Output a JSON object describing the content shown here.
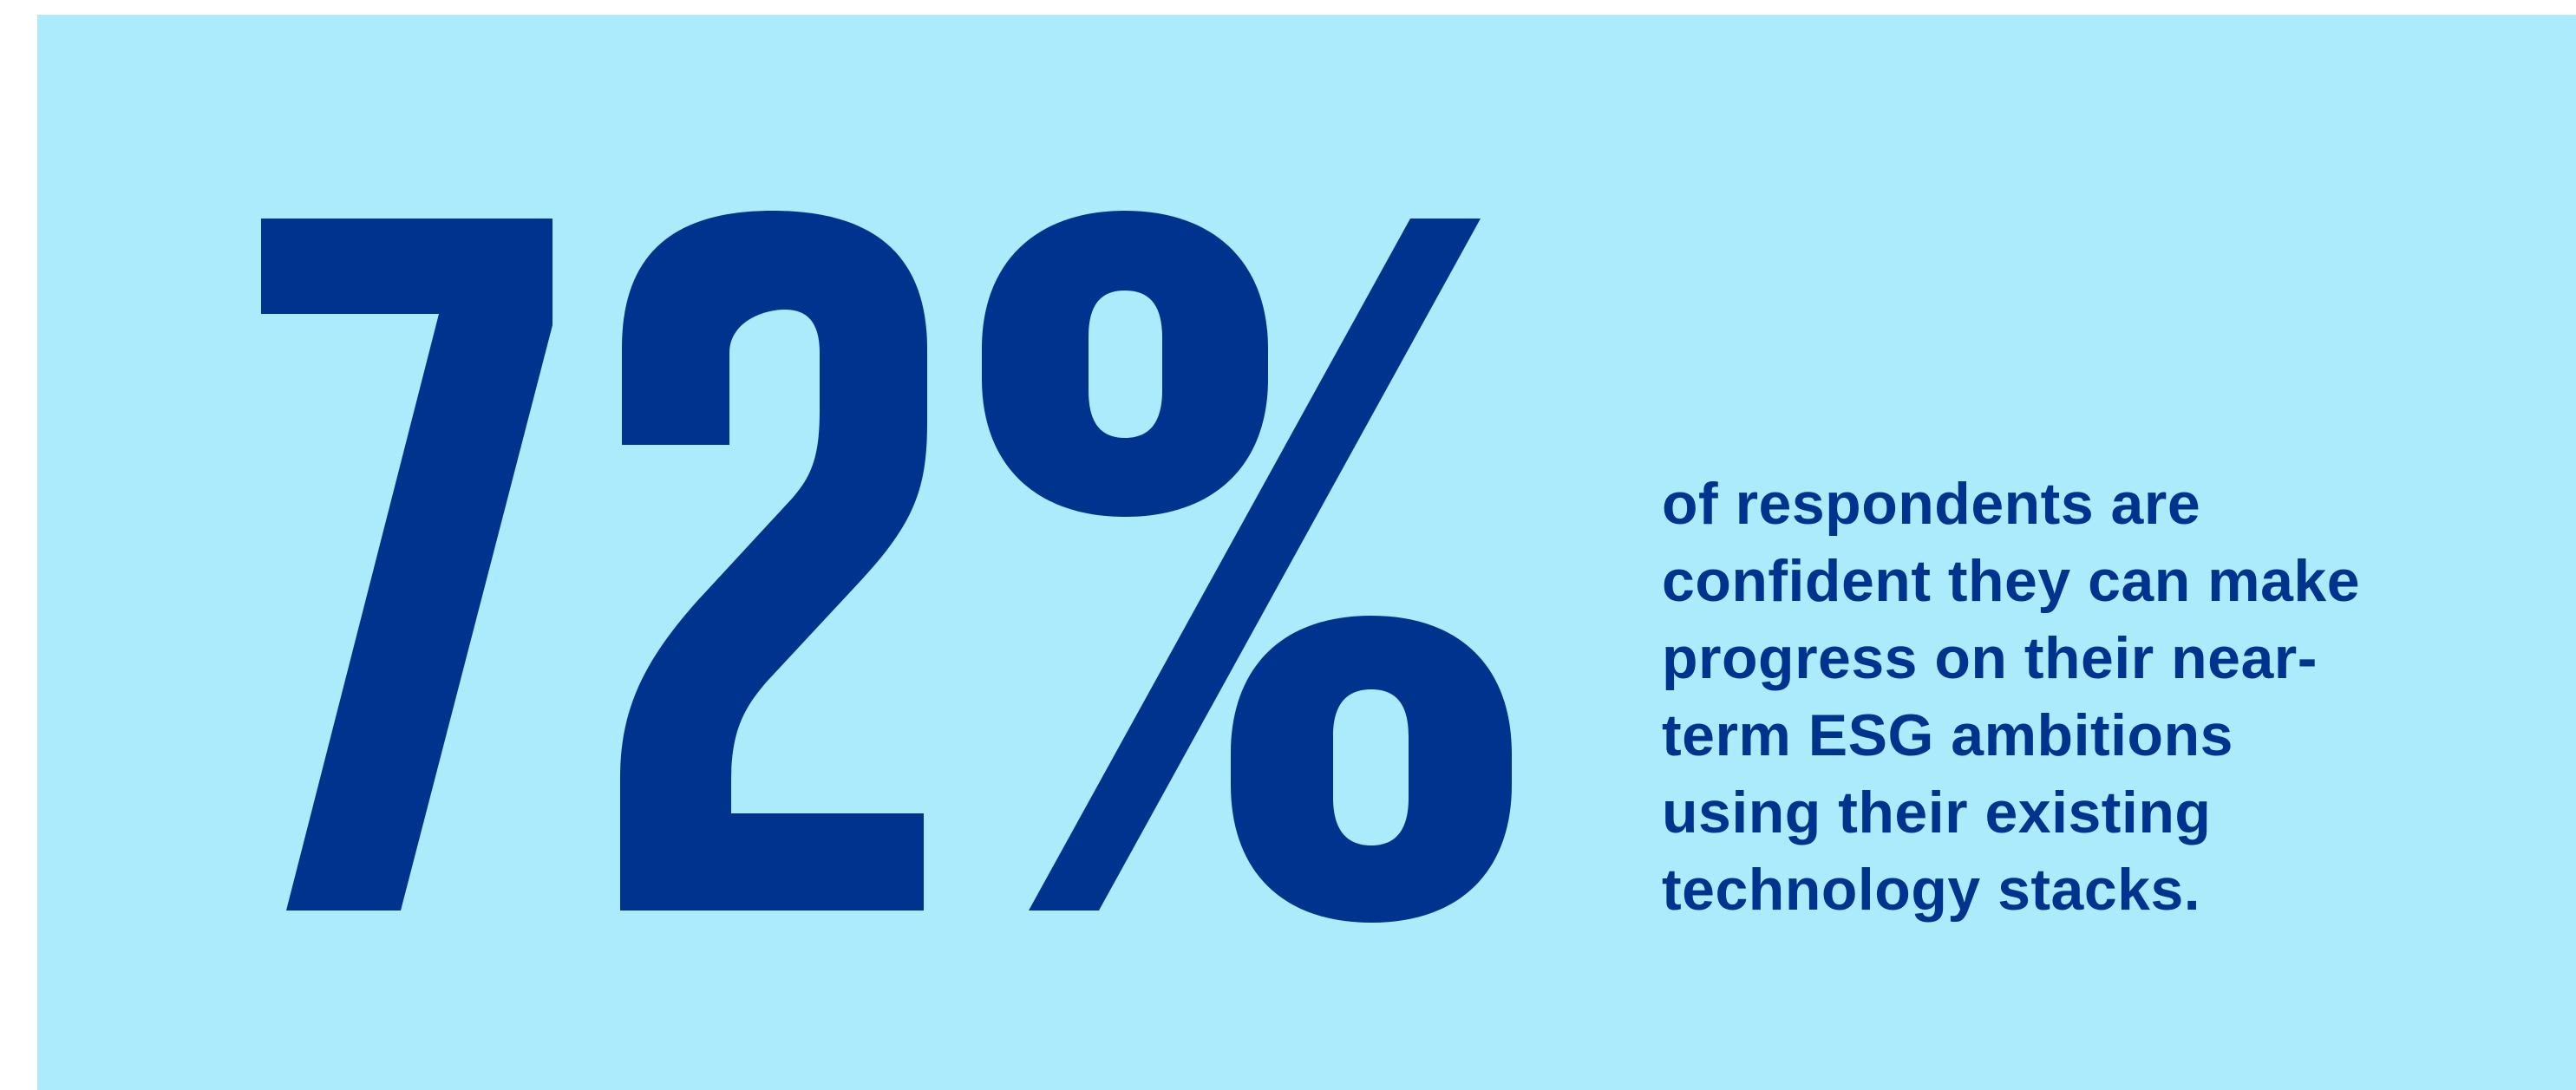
{
  "stat": {
    "value": "72%",
    "percent": 72,
    "color": "#00338d"
  },
  "description": {
    "lines": [
      "of respondents are",
      "confident they can make",
      "progress on their near-",
      "term ESG ambitions",
      "using their existing",
      "technology stacks."
    ]
  },
  "colors": {
    "background": "#acebfc",
    "text": "#00338d"
  }
}
